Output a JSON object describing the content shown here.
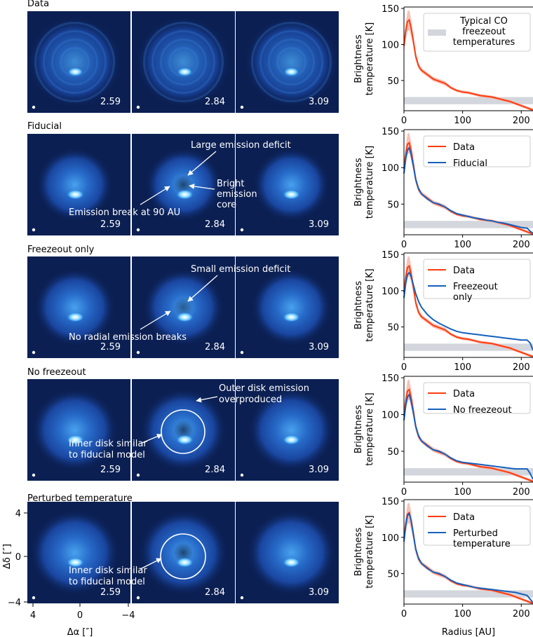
{
  "chart_data": {
    "type": "line",
    "colors": {
      "data": "#ff3b0f",
      "data_band": "#f7b3a3",
      "model": "#1560bd",
      "freezeout_band": "#d3d6dc",
      "panel_bg": "#0b1f52",
      "annotation": "#ffffff"
    },
    "channel_velocities": [
      "2.59",
      "2.84",
      "3.09"
    ],
    "image_axes": {
      "xlabel": "Δα [″]",
      "ylabel": "Δδ [″]",
      "xticks": [
        "4",
        "0",
        "−4"
      ],
      "yticks": [
        "4",
        "0",
        "−4"
      ]
    },
    "profile_axes": {
      "xlabel": "Radius [AU]",
      "ylabel_line1": "Brightness",
      "ylabel_line2": "temperature [K]",
      "xlim": [
        0,
        220
      ],
      "ylim": [
        8,
        152
      ],
      "xticks": [
        "0",
        "100",
        "200"
      ],
      "yticks": [
        "50",
        "100",
        "150"
      ],
      "freezeout_band_range": [
        17,
        27
      ]
    },
    "data_profile": {
      "name": "Data",
      "x": [
        0,
        3,
        6,
        9,
        12,
        16,
        20,
        25,
        30,
        40,
        50,
        60,
        70,
        80,
        90,
        100,
        110,
        120,
        130,
        140,
        150,
        160,
        170,
        180,
        190,
        200,
        210,
        220
      ],
      "y": [
        98,
        118,
        132,
        134,
        124,
        105,
        84,
        70,
        64,
        58,
        52,
        49,
        46,
        40,
        36,
        34,
        33,
        31,
        29,
        28,
        27,
        25,
        23,
        21,
        18,
        15,
        12,
        9
      ],
      "err": [
        10,
        12,
        14,
        14,
        12,
        8,
        6,
        4,
        3,
        3,
        3,
        3,
        3,
        2,
        2,
        2,
        2,
        2,
        2,
        2,
        2,
        2,
        2,
        2,
        2,
        2,
        2,
        2
      ]
    },
    "rows": [
      {
        "title": "Data",
        "legend": [
          "Typical CO",
          "freezeout",
          "temperatures"
        ],
        "model": null,
        "annotations": []
      },
      {
        "title": "Fiducial",
        "legend": [
          "Data",
          "Fiducial"
        ],
        "model": {
          "name": "Fiducial",
          "x": [
            0,
            3,
            6,
            9,
            12,
            16,
            20,
            25,
            30,
            40,
            50,
            60,
            70,
            80,
            90,
            100,
            110,
            120,
            130,
            140,
            150,
            160,
            170,
            180,
            190,
            200,
            210,
            215,
            220
          ],
          "y": [
            92,
            112,
            124,
            127,
            119,
            102,
            84,
            71,
            64,
            57,
            52,
            50,
            46,
            41,
            37,
            35,
            33,
            31,
            30,
            28,
            27,
            25,
            24,
            22,
            20,
            18,
            17,
            13,
            10
          ]
        },
        "annotations": [
          "Large emission deficit",
          "Bright",
          "emission",
          "core",
          "Emission break at 90 AU"
        ]
      },
      {
        "title": "Freezeout only",
        "legend": [
          "Data",
          "Freezeout",
          "only"
        ],
        "model": {
          "name": "Freezeout only",
          "x": [
            0,
            3,
            6,
            9,
            12,
            16,
            20,
            25,
            30,
            40,
            50,
            60,
            70,
            80,
            90,
            100,
            110,
            120,
            130,
            140,
            150,
            160,
            170,
            180,
            190,
            200,
            210,
            215,
            220
          ],
          "y": [
            90,
            110,
            122,
            125,
            120,
            108,
            96,
            85,
            77,
            67,
            60,
            55,
            51,
            47,
            44,
            42,
            41,
            40,
            39,
            38,
            37,
            36,
            35,
            34,
            33,
            32,
            32,
            28,
            18
          ]
        },
        "annotations": [
          "Small emission deficit",
          "No radial emission breaks"
        ]
      },
      {
        "title": "No freezeout",
        "legend": [
          "Data",
          "No freezeout"
        ],
        "model": {
          "name": "No freezeout",
          "x": [
            0,
            3,
            6,
            9,
            12,
            16,
            20,
            25,
            30,
            40,
            50,
            60,
            70,
            80,
            90,
            100,
            110,
            120,
            130,
            140,
            150,
            160,
            170,
            180,
            190,
            200,
            210,
            215,
            220
          ],
          "y": [
            92,
            112,
            124,
            127,
            119,
            102,
            84,
            71,
            64,
            57,
            52,
            50,
            46,
            41,
            37,
            35,
            34,
            33,
            32,
            31,
            30,
            29,
            28,
            27,
            26,
            26,
            26,
            20,
            12
          ]
        },
        "annotations": [
          "Outer disk emission",
          "overproduced",
          "Inner disk similar",
          "to fiducial model"
        ]
      },
      {
        "title": "Perturbed temperature",
        "legend": [
          "Data",
          "Perturbed",
          "temperature"
        ],
        "model": {
          "name": "Perturbed temperature",
          "x": [
            0,
            3,
            6,
            9,
            12,
            16,
            20,
            25,
            30,
            40,
            50,
            60,
            70,
            80,
            90,
            100,
            110,
            120,
            130,
            140,
            150,
            160,
            170,
            180,
            190,
            200,
            210,
            215,
            220
          ],
          "y": [
            94,
            116,
            130,
            133,
            124,
            104,
            84,
            71,
            64,
            57,
            52,
            50,
            46,
            41,
            37,
            35,
            33,
            31,
            30,
            29,
            28,
            27,
            26,
            25,
            24,
            22,
            20,
            15,
            10
          ]
        },
        "annotations": [
          "Inner disk similar",
          "to fiducial model"
        ]
      }
    ]
  }
}
